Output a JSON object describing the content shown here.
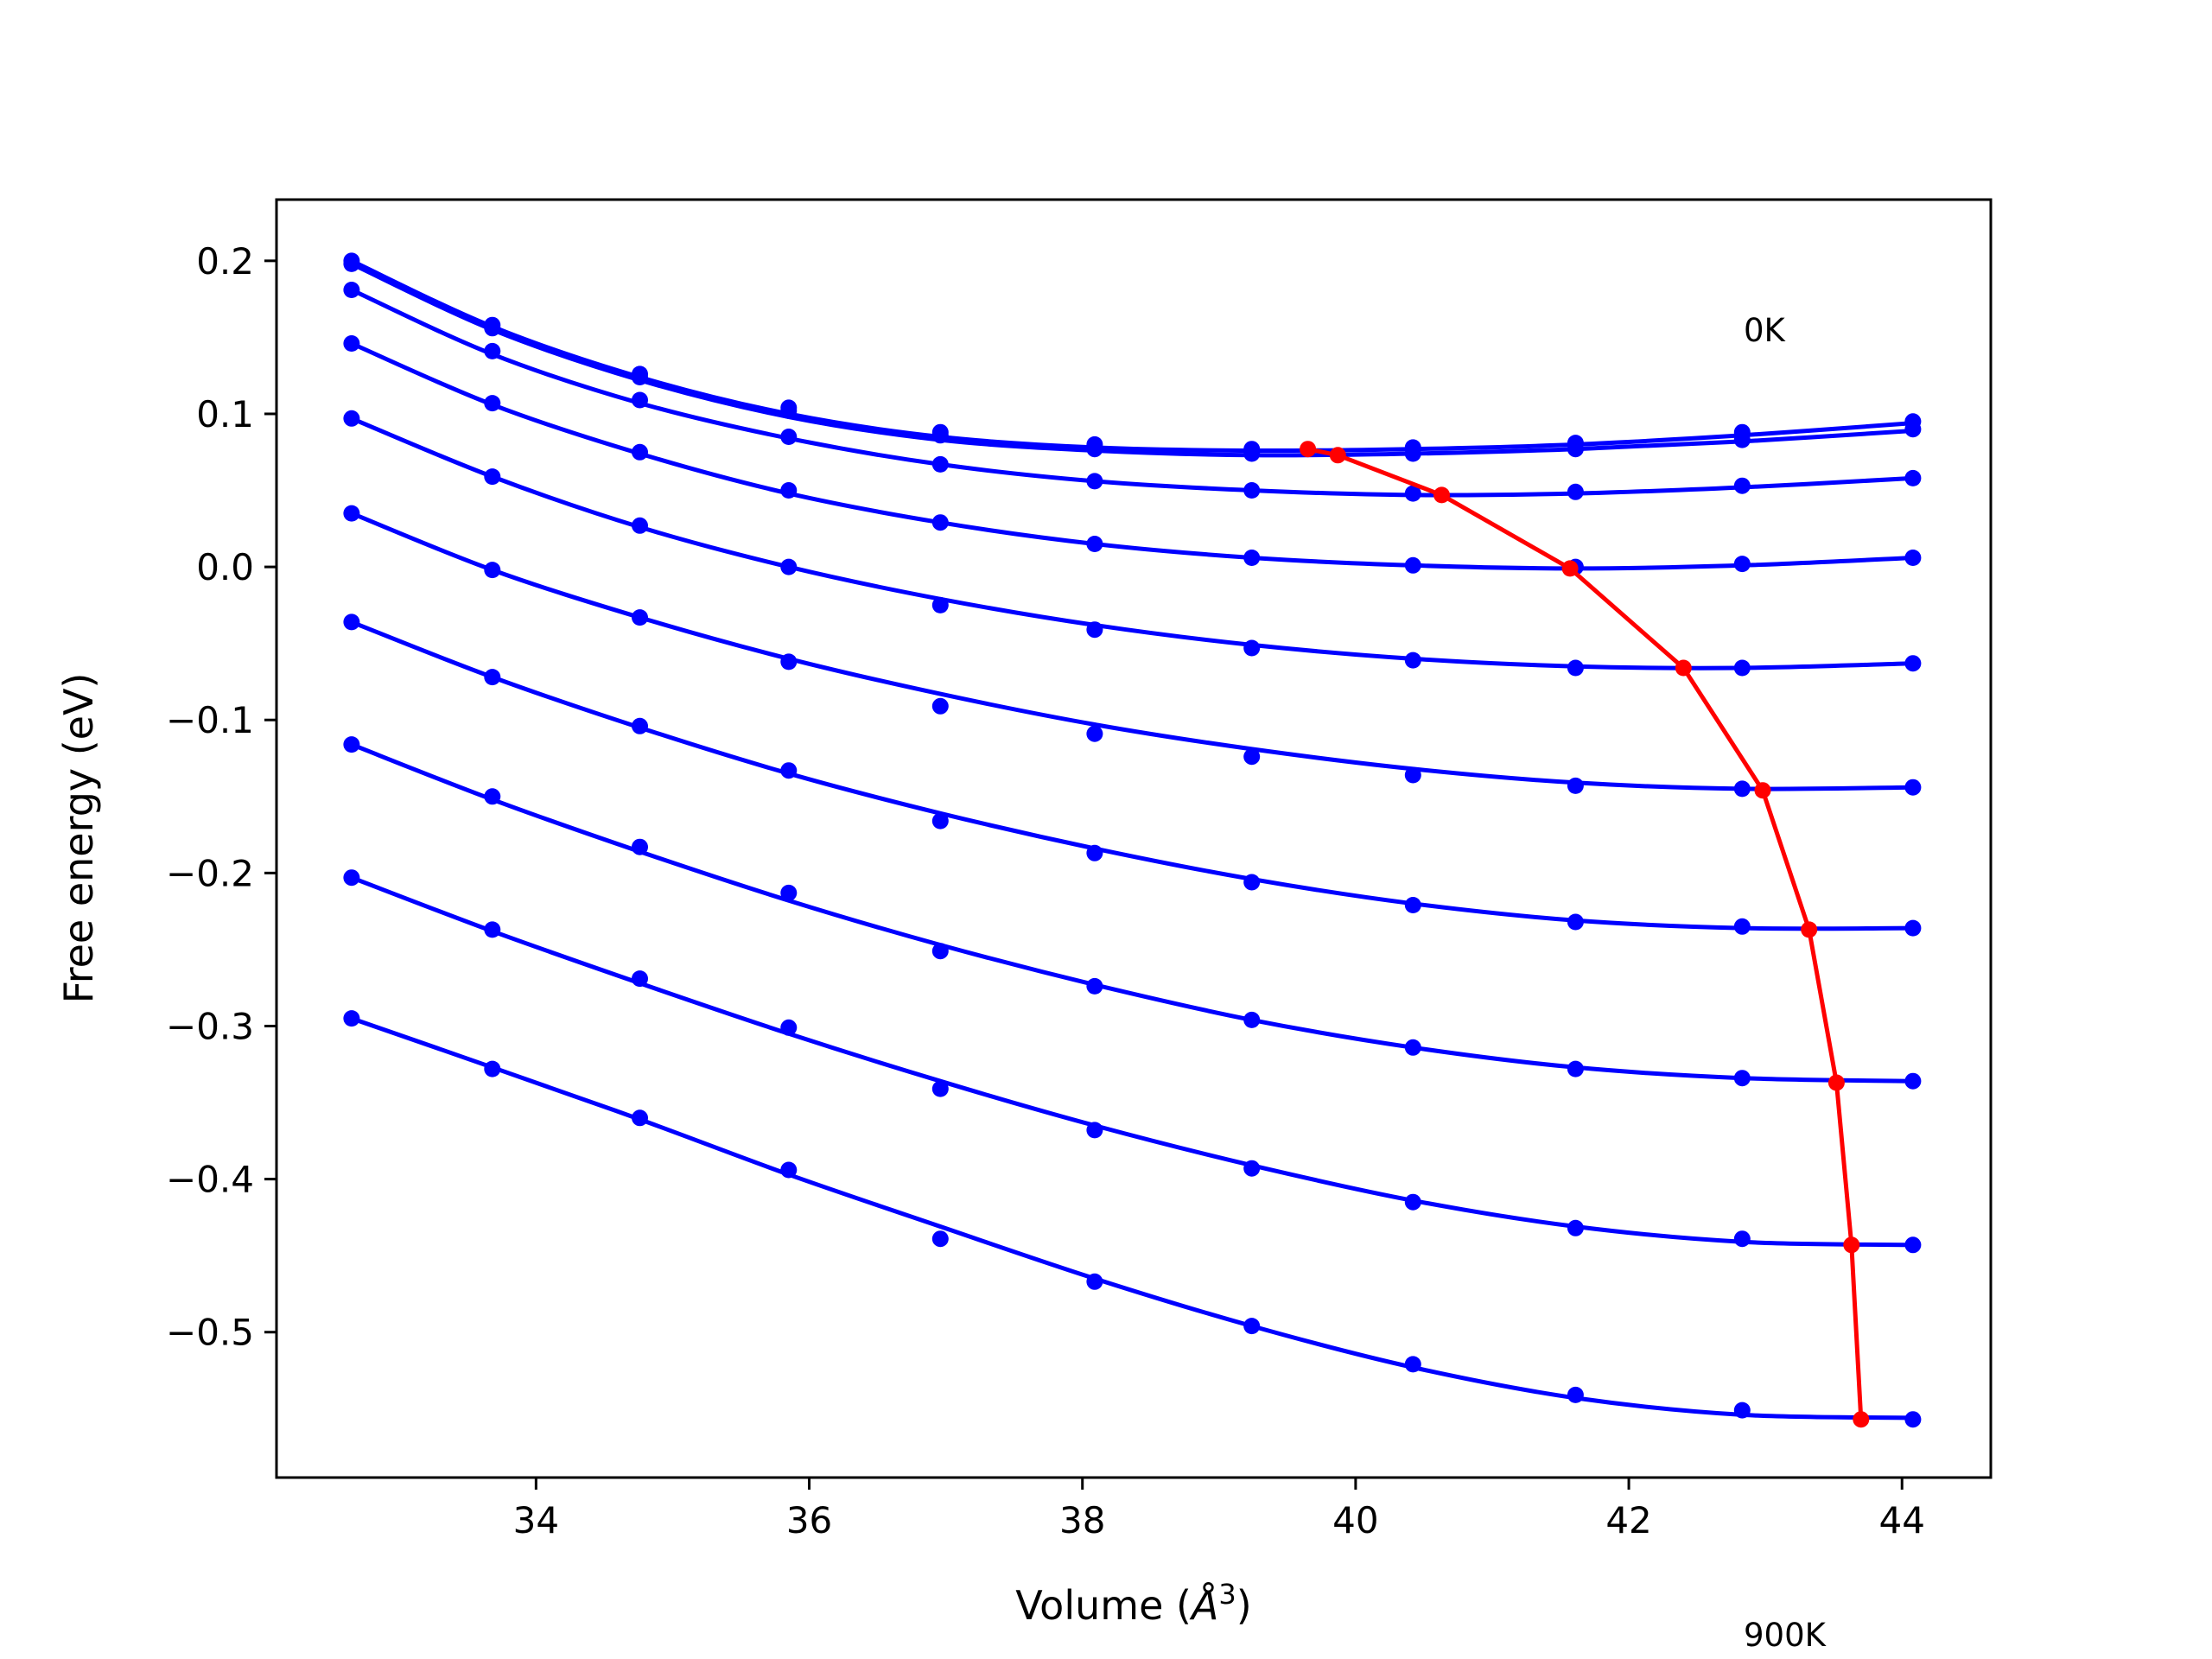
{
  "chart_data": {
    "type": "line",
    "title": "",
    "xlabel_main": "Volume (",
    "xlabel_unit": "Å",
    "xlabel_sup": "3",
    "xlabel_end": ")",
    "ylabel": "Free energy (eV)",
    "xlim": [
      32.1,
      44.65
    ],
    "ylim": [
      -0.595,
      0.24
    ],
    "xticks": [
      34,
      36,
      38,
      40,
      42,
      44
    ],
    "xtick_labels": [
      "34",
      "36",
      "38",
      "40",
      "42",
      "44"
    ],
    "yticks": [
      0.2,
      0.1,
      0.0,
      -0.1,
      -0.2,
      -0.3,
      -0.4,
      -0.5
    ],
    "ytick_labels": [
      "0.2",
      "0.1",
      "0.0",
      "−0.1",
      "−0.2",
      "−0.3",
      "−0.4",
      "−0.5"
    ],
    "grid": false,
    "legend": "none",
    "annotations": {
      "top": "0K",
      "bottom": "900K"
    },
    "colors": {
      "series": "#0000ff",
      "minima": "#ff0000"
    },
    "x": [
      32.65,
      33.68,
      34.76,
      35.85,
      36.96,
      38.09,
      39.24,
      40.42,
      41.61,
      42.83,
      44.08
    ],
    "series": [
      {
        "points": [
          0.2,
          0.158,
          0.126,
          0.104,
          0.088,
          0.08,
          0.077,
          0.078,
          0.081,
          0.088,
          0.095
        ],
        "curve": [
          0.2,
          0.157,
          0.124,
          0.1,
          0.085,
          0.078,
          0.076,
          0.077,
          0.08,
          0.086,
          0.094
        ]
      },
      {
        "points": [
          0.198,
          0.156,
          0.124,
          0.102,
          0.086,
          0.077,
          0.074,
          0.074,
          0.077,
          0.083,
          0.09
        ],
        "curve": [
          0.198,
          0.155,
          0.122,
          0.098,
          0.083,
          0.076,
          0.073,
          0.074,
          0.077,
          0.082,
          0.089
        ]
      },
      {
        "points": [
          0.181,
          0.141,
          0.109,
          0.085,
          0.067,
          0.056,
          0.05,
          0.048,
          0.049,
          0.053,
          0.058
        ],
        "curve": [
          0.181,
          0.139,
          0.107,
          0.084,
          0.067,
          0.056,
          0.05,
          0.047,
          0.048,
          0.052,
          0.058
        ]
      },
      {
        "points": [
          0.146,
          0.107,
          0.075,
          0.05,
          0.029,
          0.015,
          0.006,
          0.001,
          0.0,
          0.002,
          0.006
        ],
        "curve": [
          0.146,
          0.106,
          0.074,
          0.048,
          0.029,
          0.015,
          0.006,
          0.001,
          -0.001,
          0.001,
          0.006
        ]
      },
      {
        "points": [
          0.097,
          0.059,
          0.027,
          0.0,
          -0.025,
          -0.041,
          -0.053,
          -0.061,
          -0.066,
          -0.066,
          -0.063
        ],
        "curve": [
          0.097,
          0.059,
          0.026,
          0.0,
          -0.021,
          -0.038,
          -0.051,
          -0.06,
          -0.065,
          -0.066,
          -0.063
        ]
      },
      {
        "points": [
          0.035,
          -0.002,
          -0.033,
          -0.062,
          -0.091,
          -0.109,
          -0.124,
          -0.136,
          -0.143,
          -0.145,
          -0.144
        ],
        "curve": [
          0.035,
          -0.002,
          -0.033,
          -0.06,
          -0.083,
          -0.103,
          -0.119,
          -0.132,
          -0.141,
          -0.145,
          -0.144
        ]
      },
      {
        "points": [
          -0.036,
          -0.072,
          -0.104,
          -0.133,
          -0.166,
          -0.187,
          -0.206,
          -0.221,
          -0.232,
          -0.235,
          -0.236
        ],
        "curve": [
          -0.036,
          -0.072,
          -0.105,
          -0.135,
          -0.161,
          -0.184,
          -0.204,
          -0.22,
          -0.231,
          -0.236,
          -0.236
        ]
      },
      {
        "points": [
          -0.116,
          -0.15,
          -0.183,
          -0.213,
          -0.251,
          -0.274,
          -0.296,
          -0.314,
          -0.328,
          -0.334,
          -0.336
        ],
        "curve": [
          -0.116,
          -0.152,
          -0.186,
          -0.218,
          -0.247,
          -0.273,
          -0.296,
          -0.314,
          -0.327,
          -0.334,
          -0.336
        ]
      },
      {
        "points": [
          -0.203,
          -0.237,
          -0.269,
          -0.301,
          -0.341,
          -0.368,
          -0.393,
          -0.415,
          -0.432,
          -0.439,
          -0.443
        ],
        "curve": [
          -0.203,
          -0.238,
          -0.272,
          -0.305,
          -0.336,
          -0.365,
          -0.391,
          -0.414,
          -0.431,
          -0.441,
          -0.443
        ]
      },
      {
        "points": [
          -0.295,
          -0.328,
          -0.36,
          -0.394,
          -0.439,
          -0.467,
          -0.496,
          -0.521,
          -0.541,
          -0.551,
          -0.557
        ],
        "curve": [
          -0.295,
          -0.327,
          -0.361,
          -0.397,
          -0.431,
          -0.465,
          -0.496,
          -0.523,
          -0.543,
          -0.554,
          -0.556
        ]
      }
    ],
    "minima_line": {
      "x": [
        39.65,
        39.87,
        40.63,
        41.57,
        42.4,
        42.98,
        43.32,
        43.52,
        43.63,
        43.7
      ],
      "y": [
        0.077,
        0.073,
        0.047,
        -0.001,
        -0.066,
        -0.146,
        -0.237,
        -0.337,
        -0.443,
        -0.557
      ]
    }
  }
}
